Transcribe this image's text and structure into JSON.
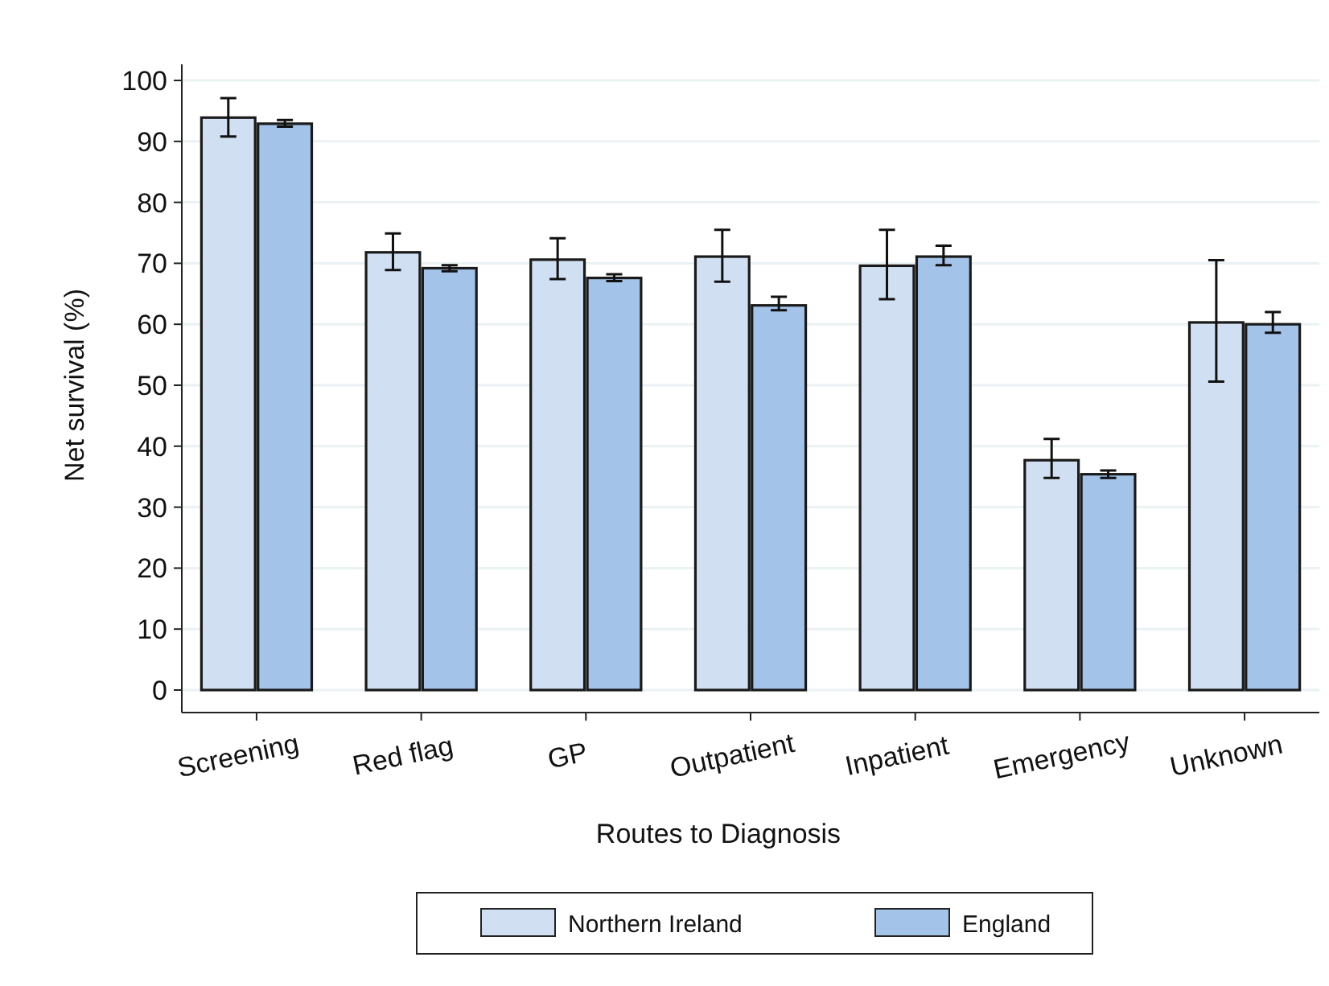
{
  "chart_data": {
    "type": "bar",
    "xlabel": "Routes to Diagnosis",
    "ylabel": "Net survival (%)",
    "categories": [
      "Screening",
      "Red flag",
      "GP",
      "Outpatient",
      "Inpatient",
      "Emergency",
      "Unknown"
    ],
    "series": [
      {
        "name": "Northern Ireland",
        "color": "#d0e0f2",
        "values": [
          93.9,
          71.8,
          70.6,
          71.1,
          69.6,
          37.7,
          60.3
        ],
        "errors": [
          [
            90.8,
            97.1
          ],
          [
            68.9,
            74.9
          ],
          [
            67.4,
            74.1
          ],
          [
            67.0,
            75.5
          ],
          [
            64.1,
            75.5
          ],
          [
            34.8,
            41.2
          ],
          [
            50.6,
            70.5
          ]
        ]
      },
      {
        "name": "England",
        "color": "#a3c3e8",
        "values": [
          92.9,
          69.2,
          67.6,
          63.1,
          71.1,
          35.4,
          60.0
        ],
        "errors": [
          [
            92.4,
            93.5
          ],
          [
            68.7,
            69.7
          ],
          [
            67.1,
            68.2
          ],
          [
            62.3,
            64.5
          ],
          [
            69.7,
            72.9
          ],
          [
            34.8,
            36.0
          ],
          [
            58.6,
            62.0
          ]
        ]
      }
    ],
    "ylim": [
      0,
      100
    ],
    "yticks": [
      0,
      10,
      20,
      30,
      40,
      50,
      60,
      70,
      80,
      90,
      100
    ],
    "grid": "y",
    "legend": "bottom"
  }
}
